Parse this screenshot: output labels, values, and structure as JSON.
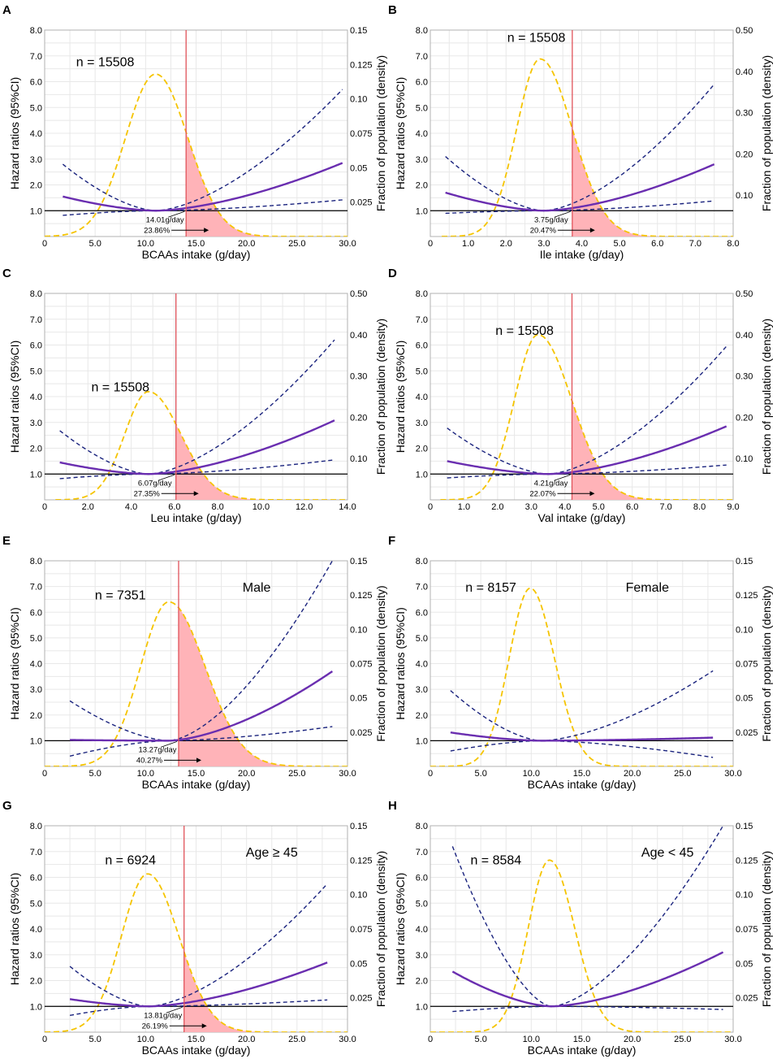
{
  "style": {
    "hr_color": "#6a2eb0",
    "ci_color": "#1a237e",
    "density_color": "#f5c400",
    "cutoff_color": "#e0525a",
    "fill_color": "#ffb3b8",
    "grid_color": "#e8e8e8"
  },
  "chart_data": [
    {
      "panel": "A",
      "type": "line",
      "xlabel": "BCAAs intake (g/day)",
      "ylabel": "Hazard ratios (95%CI)",
      "y2label": "Fraction of population (density)",
      "xlim": [
        0,
        30
      ],
      "ylim": [
        0,
        8
      ],
      "y2lim": [
        0,
        0.15
      ],
      "xticks": [
        0,
        5,
        10,
        15,
        20,
        25,
        30
      ],
      "xtick_labels": [
        "0",
        "5.0",
        "10.0",
        "15.0",
        "20.0",
        "25.0",
        "30.0"
      ],
      "yticks": [
        1,
        2,
        3,
        4,
        5,
        6,
        7,
        8
      ],
      "ytick_labels": [
        "1.0",
        "2.0",
        "3.0",
        "4.0",
        "5.0",
        "6.0",
        "7.0",
        "8.0"
      ],
      "y2ticks": [
        0.025,
        0.05,
        0.075,
        0.1,
        0.125,
        0.15
      ],
      "y2tick_labels": [
        "0.025",
        "0.05",
        "0.075",
        "0.10",
        "0.125",
        "0.15"
      ],
      "n_label": "n = 15508",
      "n_pos": [
        6,
        6.6
      ],
      "group_label": "",
      "cutoff": 14.01,
      "cutoff_label": "14.01g/day",
      "pct_label": "23.86%",
      "hr": {
        "x_start": 1.8,
        "x_end": 29.5,
        "ref": 11,
        "left": 1.55,
        "right": 2.85
      },
      "ci_upper": {
        "left": 2.8,
        "right": 5.7
      },
      "ci_lower": {
        "left": 0.82,
        "right": 1.42
      },
      "density": {
        "start": 0,
        "end": 30,
        "peak_x": 11,
        "peak": 0.118,
        "sl": 3.0,
        "sr": 3.2
      }
    },
    {
      "panel": "B",
      "type": "line",
      "xlabel": "Ile intake (g/day)",
      "ylabel": "Hazard ratios (95%CI)",
      "y2label": "Fraction of population (density)",
      "xlim": [
        0,
        8
      ],
      "ylim": [
        0,
        8
      ],
      "y2lim": [
        0,
        0.5
      ],
      "xticks": [
        0,
        1,
        2,
        3,
        4,
        5,
        6,
        7,
        8
      ],
      "xtick_labels": [
        "0",
        "1.0",
        "2.0",
        "3.0",
        "4.0",
        "5.0",
        "6.0",
        "7.0",
        "8.0"
      ],
      "yticks": [
        1,
        2,
        3,
        4,
        5,
        6,
        7,
        8
      ],
      "ytick_labels": [
        "1.0",
        "2.0",
        "3.0",
        "4.0",
        "5.0",
        "6.0",
        "7.0",
        "8.0"
      ],
      "y2ticks": [
        0.1,
        0.2,
        0.3,
        0.4,
        0.5
      ],
      "y2tick_labels": [
        "0.10",
        "0.20",
        "0.30",
        "0.40",
        "0.50"
      ],
      "n_label": "n = 15508",
      "n_pos": [
        2.8,
        7.55
      ],
      "group_label": "",
      "cutoff": 3.75,
      "cutoff_label": "3.75g/day",
      "pct_label": "20.47%",
      "hr": {
        "x_start": 0.4,
        "x_end": 7.5,
        "ref": 3.0,
        "left": 1.7,
        "right": 2.8
      },
      "ci_upper": {
        "left": 3.1,
        "right": 5.9
      },
      "ci_lower": {
        "left": 0.9,
        "right": 1.38
      },
      "density": {
        "start": 0.3,
        "end": 8,
        "peak_x": 2.9,
        "peak": 0.43,
        "sl": 0.62,
        "sr": 0.85
      }
    },
    {
      "panel": "C",
      "type": "line",
      "xlabel": "Leu intake (g/day)",
      "ylabel": "Hazard ratios (95%CI)",
      "y2label": "Fraction of population (density)",
      "xlim": [
        0,
        14
      ],
      "ylim": [
        0,
        8
      ],
      "y2lim": [
        0,
        0.5
      ],
      "xticks": [
        0,
        2,
        4,
        6,
        8,
        10,
        12,
        14
      ],
      "xtick_labels": [
        "0",
        "2.0",
        "4.0",
        "6.0",
        "8.0",
        "10.0",
        "12.0",
        "14.0"
      ],
      "yticks": [
        1,
        2,
        3,
        4,
        5,
        6,
        7,
        8
      ],
      "ytick_labels": [
        "1.0",
        "2.0",
        "3.0",
        "4.0",
        "5.0",
        "6.0",
        "7.0",
        "8.0"
      ],
      "y2ticks": [
        0.1,
        0.2,
        0.3,
        0.4,
        0.5
      ],
      "y2tick_labels": [
        "0.10",
        "0.20",
        "0.30",
        "0.40",
        "0.50"
      ],
      "n_label": "n = 15508",
      "n_pos": [
        3.5,
        4.2
      ],
      "group_label": "",
      "cutoff": 6.07,
      "cutoff_label": "6.07g/day",
      "pct_label": "27.35%",
      "hr": {
        "x_start": 0.7,
        "x_end": 13.4,
        "ref": 4.8,
        "left": 1.45,
        "right": 3.08
      },
      "ci_upper": {
        "left": 2.68,
        "right": 6.2
      },
      "ci_lower": {
        "left": 0.82,
        "right": 1.55
      },
      "density": {
        "start": 0.5,
        "end": 14,
        "peak_x": 4.8,
        "peak": 0.262,
        "sl": 1.1,
        "sr": 1.5
      }
    },
    {
      "panel": "D",
      "type": "line",
      "xlabel": "Val intake (g/day)",
      "ylabel": "Hazard ratios (95%CI)",
      "y2label": "Fraction of population (density)",
      "xlim": [
        0,
        9
      ],
      "ylim": [
        0,
        8
      ],
      "y2lim": [
        0,
        0.5
      ],
      "xticks": [
        0,
        1,
        2,
        3,
        4,
        5,
        6,
        7,
        8,
        9
      ],
      "xtick_labels": [
        "0",
        "1.0",
        "2.0",
        "3.0",
        "4.0",
        "5.0",
        "6.0",
        "7.0",
        "8.0",
        "9.0"
      ],
      "yticks": [
        1,
        2,
        3,
        4,
        5,
        6,
        7,
        8
      ],
      "ytick_labels": [
        "1.0",
        "2.0",
        "3.0",
        "4.0",
        "5.0",
        "6.0",
        "7.0",
        "8.0"
      ],
      "y2ticks": [
        0.1,
        0.2,
        0.3,
        0.4,
        0.5
      ],
      "y2tick_labels": [
        "0.10",
        "0.20",
        "0.30",
        "0.40",
        "0.50"
      ],
      "n_label": "n = 15508",
      "n_pos": [
        2.8,
        6.4
      ],
      "group_label": "",
      "cutoff": 4.21,
      "cutoff_label": "4.21g/day",
      "pct_label": "22.07%",
      "hr": {
        "x_start": 0.5,
        "x_end": 8.8,
        "ref": 3.5,
        "left": 1.5,
        "right": 2.85
      },
      "ci_upper": {
        "left": 2.78,
        "right": 5.95
      },
      "ci_lower": {
        "left": 0.85,
        "right": 1.35
      },
      "density": {
        "start": 0.3,
        "end": 9,
        "peak_x": 3.2,
        "peak": 0.4,
        "sl": 0.7,
        "sr": 1.0
      }
    },
    {
      "panel": "E",
      "type": "line",
      "xlabel": "BCAAs intake (g/day)",
      "ylabel": "Hazard ratios (95%CI)",
      "y2label": "Fraction of population (density)",
      "xlim": [
        0,
        30
      ],
      "ylim": [
        0,
        8
      ],
      "y2lim": [
        0,
        0.15
      ],
      "xticks": [
        0,
        5,
        10,
        15,
        20,
        25,
        30
      ],
      "xtick_labels": [
        "0",
        "5.0",
        "10.0",
        "15.0",
        "20.0",
        "25.0",
        "30.0"
      ],
      "yticks": [
        1,
        2,
        3,
        4,
        5,
        6,
        7,
        8
      ],
      "ytick_labels": [
        "1.0",
        "2.0",
        "3.0",
        "4.0",
        "5.0",
        "6.0",
        "7.0",
        "8.0"
      ],
      "y2ticks": [
        0.025,
        0.05,
        0.075,
        0.1,
        0.125,
        0.15
      ],
      "y2tick_labels": [
        "0.025",
        "0.05",
        "0.075",
        "0.10",
        "0.125",
        "0.15"
      ],
      "n_label": "n = 7351",
      "n_pos": [
        7.5,
        6.5
      ],
      "group_label": "Male",
      "group_pos": [
        21,
        6.8
      ],
      "cutoff": 13.27,
      "cutoff_label": "13.27g/day",
      "pct_label": "40.27%",
      "hr": {
        "x_start": 2.5,
        "x_end": 28.5,
        "ref": 12.3,
        "left": 1.03,
        "right": 3.7
      },
      "ci_upper": {
        "left": 2.55,
        "right": 8.0
      },
      "ci_lower": {
        "left": 0.4,
        "right": 1.55
      },
      "density": {
        "start": 0,
        "end": 30,
        "peak_x": 12.3,
        "peak": 0.12,
        "sl": 2.8,
        "sr": 3.6
      }
    },
    {
      "panel": "F",
      "type": "line",
      "xlabel": "BCAAs intake (g/day)",
      "ylabel": "Hazard ratios (95%CI)",
      "y2label": "Fraction of population (density)",
      "xlim": [
        0,
        30
      ],
      "ylim": [
        0,
        8
      ],
      "y2lim": [
        0,
        0.15
      ],
      "xticks": [
        0,
        5,
        10,
        15,
        20,
        25,
        30
      ],
      "xtick_labels": [
        "0",
        "5.0",
        "10.0",
        "15.0",
        "20.0",
        "25.0",
        "30.0"
      ],
      "yticks": [
        1,
        2,
        3,
        4,
        5,
        6,
        7,
        8
      ],
      "ytick_labels": [
        "1.0",
        "2.0",
        "3.0",
        "4.0",
        "5.0",
        "6.0",
        "7.0",
        "8.0"
      ],
      "y2ticks": [
        0.025,
        0.05,
        0.075,
        0.1,
        0.125,
        0.15
      ],
      "y2tick_labels": [
        "0.025",
        "0.05",
        "0.075",
        "0.10",
        "0.125",
        "0.15"
      ],
      "n_label": "n = 8157",
      "n_pos": [
        6,
        6.8
      ],
      "group_label": "Female",
      "group_pos": [
        21.5,
        6.8
      ],
      "cutoff": null,
      "cutoff_label": "",
      "pct_label": "",
      "hr": {
        "x_start": 2,
        "x_end": 28,
        "ref": 11,
        "left": 1.32,
        "right": 1.12
      },
      "ci_upper": {
        "left": 2.95,
        "right": 3.72
      },
      "ci_lower": {
        "left": 0.6,
        "right": 0.35
      },
      "density": {
        "start": 0,
        "end": 30,
        "peak_x": 9.9,
        "peak": 0.13,
        "sl": 2.1,
        "sr": 2.4
      }
    },
    {
      "panel": "G",
      "type": "line",
      "xlabel": "BCAAs intake (g/day)",
      "ylabel": "Hazard ratios (95%CI)",
      "y2label": "Fraction of population (density)",
      "xlim": [
        0,
        30
      ],
      "ylim": [
        0,
        8
      ],
      "y2lim": [
        0,
        0.15
      ],
      "xticks": [
        0,
        5,
        10,
        15,
        20,
        25,
        30
      ],
      "xtick_labels": [
        "0",
        "5.0",
        "10.0",
        "15.0",
        "20.0",
        "25.0",
        "30.0"
      ],
      "yticks": [
        1,
        2,
        3,
        4,
        5,
        6,
        7,
        8
      ],
      "ytick_labels": [
        "1.0",
        "2.0",
        "3.0",
        "4.0",
        "5.0",
        "6.0",
        "7.0",
        "8.0"
      ],
      "y2ticks": [
        0.025,
        0.05,
        0.075,
        0.1,
        0.125,
        0.15
      ],
      "y2tick_labels": [
        "0.025",
        "0.05",
        "0.075",
        "0.10",
        "0.125",
        "0.15"
      ],
      "n_label": "n = 6924",
      "n_pos": [
        8.5,
        6.5
      ],
      "group_label": "Age ≥ 45",
      "group_pos": [
        22.5,
        6.8
      ],
      "cutoff": 13.81,
      "cutoff_label": "13.81g/day",
      "pct_label": "26.19%",
      "hr": {
        "x_start": 2.5,
        "x_end": 28,
        "ref": 10.3,
        "left": 1.28,
        "right": 2.7
      },
      "ci_upper": {
        "left": 2.55,
        "right": 5.75
      },
      "ci_lower": {
        "left": 0.65,
        "right": 1.25
      },
      "density": {
        "start": 0,
        "end": 30,
        "peak_x": 10.2,
        "peak": 0.115,
        "sl": 2.6,
        "sr": 3.1
      }
    },
    {
      "panel": "H",
      "type": "line",
      "xlabel": "BCAAs intake (g/day)",
      "ylabel": "Hazard ratios (95%CI)",
      "y2label": "Fraction of population (density)",
      "xlim": [
        0,
        30
      ],
      "ylim": [
        0,
        8
      ],
      "y2lim": [
        0,
        0.15
      ],
      "xticks": [
        0,
        5,
        10,
        15,
        20,
        25,
        30
      ],
      "xtick_labels": [
        "0",
        "5.0",
        "10.0",
        "15.0",
        "20.0",
        "25.0",
        "30.0"
      ],
      "yticks": [
        1,
        2,
        3,
        4,
        5,
        6,
        7,
        8
      ],
      "ytick_labels": [
        "1.0",
        "2.0",
        "3.0",
        "4.0",
        "5.0",
        "6.0",
        "7.0",
        "8.0"
      ],
      "y2ticks": [
        0.025,
        0.05,
        0.075,
        0.1,
        0.125,
        0.15
      ],
      "y2tick_labels": [
        "0.025",
        "0.05",
        "0.075",
        "0.10",
        "0.125",
        "0.15"
      ],
      "n_label": "n = 8584",
      "n_pos": [
        6.5,
        6.5
      ],
      "group_label": "Age < 45",
      "group_pos": [
        23.5,
        6.8
      ],
      "cutoff": null,
      "cutoff_label": "",
      "pct_label": "",
      "hr": {
        "x_start": 2.2,
        "x_end": 29,
        "ref": 12,
        "left": 2.35,
        "right": 3.1
      },
      "ci_upper": {
        "left": 7.2,
        "right": 8.0
      },
      "ci_lower": {
        "left": 0.8,
        "right": 0.88
      },
      "density": {
        "start": 0,
        "end": 30,
        "peak_x": 11.8,
        "peak": 0.125,
        "sl": 2.1,
        "sr": 2.5
      }
    }
  ]
}
